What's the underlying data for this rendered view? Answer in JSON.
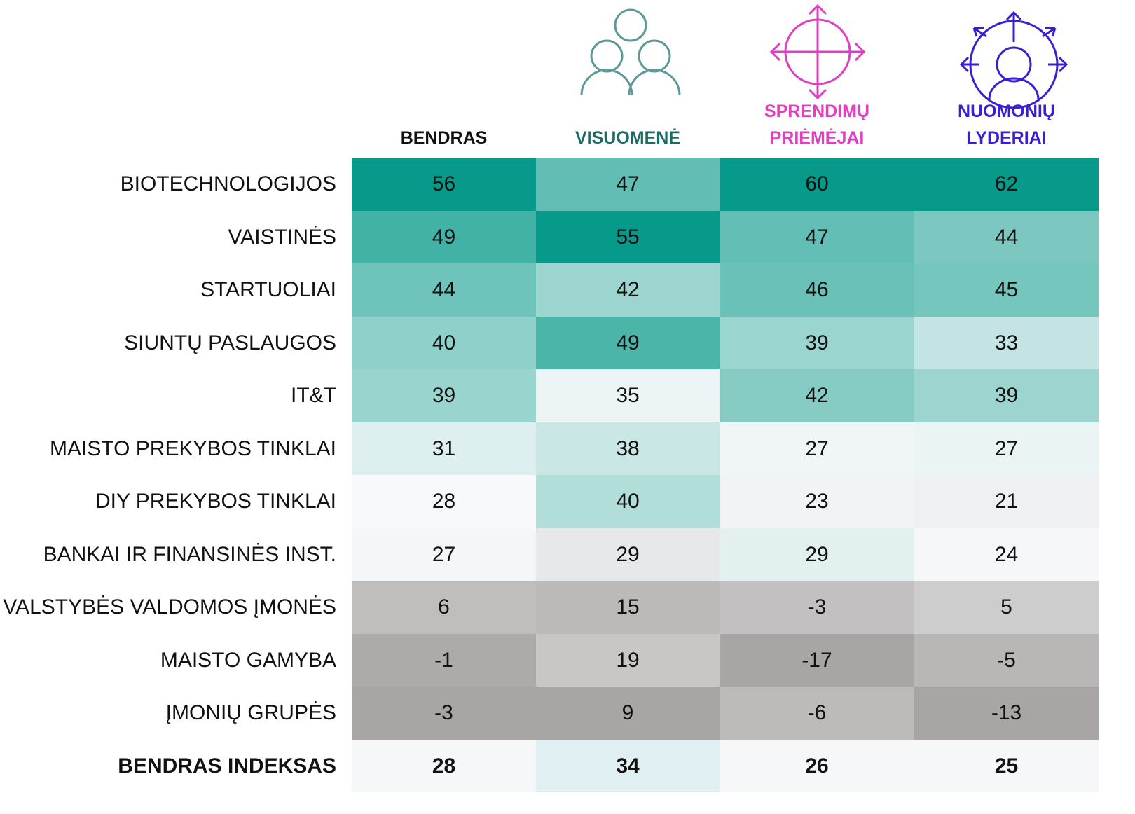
{
  "table": {
    "columns": [
      "BENDRAS",
      "VISUOMENĖ",
      "SPRENDIMŲ PRIĖMĖJAI",
      "NUOMONIŲ LYDERIAI"
    ],
    "rows": [
      {
        "label": "BIOTECHNOLOGIJOS",
        "values": [
          56,
          47,
          60,
          62
        ]
      },
      {
        "label": "VAISTINĖS",
        "values": [
          49,
          55,
          47,
          44
        ]
      },
      {
        "label": "STARTUOLIAI",
        "values": [
          44,
          42,
          46,
          45
        ]
      },
      {
        "label": "SIUNTŲ PASLAUGOS",
        "values": [
          40,
          49,
          39,
          33
        ]
      },
      {
        "label": "IT&T",
        "values": [
          39,
          35,
          42,
          39
        ]
      },
      {
        "label": "MAISTO PREKYBOS TINKLAI",
        "values": [
          31,
          38,
          27,
          27
        ]
      },
      {
        "label": "DIY PREKYBOS TINKLAI",
        "values": [
          28,
          40,
          23,
          21
        ]
      },
      {
        "label": "BANKAI IR FINANSINĖS INST.",
        "values": [
          27,
          29,
          29,
          24
        ]
      },
      {
        "label": "VALSTYBĖS VALDOMOS ĮMONĖS",
        "values": [
          6,
          15,
          -3,
          5
        ]
      },
      {
        "label": "MAISTO GAMYBA",
        "values": [
          -1,
          19,
          -17,
          -5
        ]
      },
      {
        "label": "ĮMONIŲ GRUPĖS",
        "values": [
          -3,
          9,
          -6,
          -13
        ]
      }
    ],
    "total": {
      "label": "BENDRAS INDEKSAS",
      "values": [
        28,
        34,
        26,
        25
      ]
    }
  }
}
